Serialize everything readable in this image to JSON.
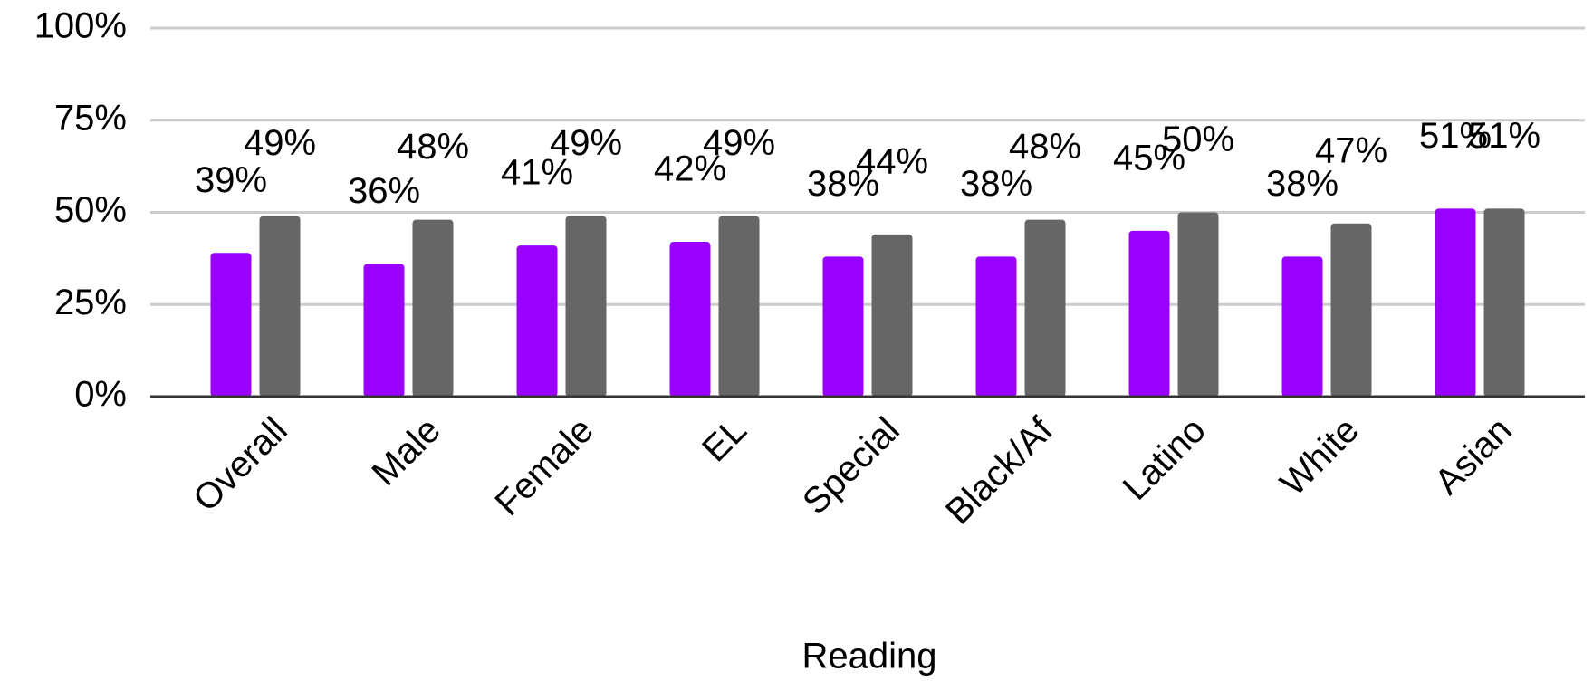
{
  "chart_data": {
    "type": "bar",
    "x_label": "Reading",
    "categories": [
      "Overall",
      "Male",
      "Female",
      "EL",
      "Special",
      "Black/Af",
      "Latino",
      "White",
      "Asian"
    ],
    "series": [
      {
        "color": "#9900ff",
        "values": [
          39,
          36,
          41,
          42,
          38,
          38,
          45,
          38,
          51
        ],
        "value_labels": [
          "39%",
          "36%",
          "41%",
          "42%",
          "38%",
          "38%",
          "45%",
          "38%",
          "51%"
        ]
      },
      {
        "color": "#666666",
        "values": [
          49,
          48,
          49,
          49,
          44,
          48,
          50,
          47,
          51
        ],
        "value_labels": [
          "49%",
          "48%",
          "49%",
          "49%",
          "44%",
          "48%",
          "50%",
          "47%",
          "51%"
        ]
      }
    ],
    "ylim": [
      0,
      100
    ],
    "yticks": [
      {
        "value": 0,
        "label": "0%"
      },
      {
        "value": 25,
        "label": "25%"
      },
      {
        "value": 50,
        "label": "50%"
      },
      {
        "value": 75,
        "label": "75%"
      },
      {
        "value": 100,
        "label": "100%"
      }
    ],
    "grid": true
  }
}
